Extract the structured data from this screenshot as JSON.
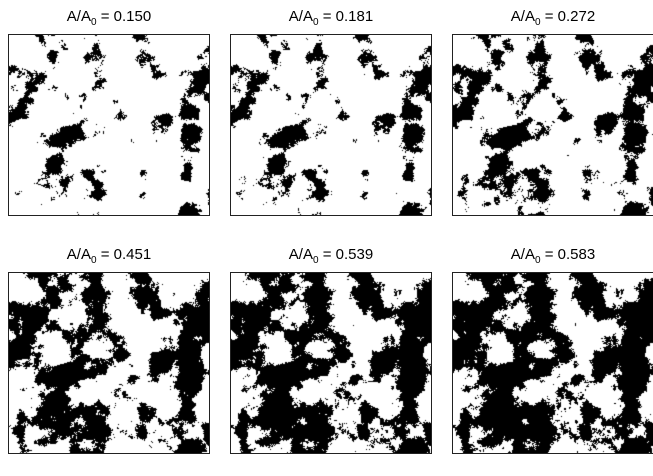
{
  "panels": [
    {
      "label": "A/A",
      "subscript": "0",
      "value": "= 0.150",
      "coverage": 0.15
    },
    {
      "label": "A/A",
      "subscript": "0",
      "value": "= 0.181",
      "coverage": 0.181
    },
    {
      "label": "A/A",
      "subscript": "0",
      "value": "= 0.272",
      "coverage": 0.272
    },
    {
      "label": "A/A",
      "subscript": "0",
      "value": "= 0.451",
      "coverage": 0.451
    },
    {
      "label": "A/A",
      "subscript": "0",
      "value": "= 0.539",
      "coverage": 0.539
    },
    {
      "label": "A/A",
      "subscript": "0",
      "value": "= 0.583",
      "coverage": 0.583
    }
  ],
  "colors": {
    "contact": "#000000",
    "background": "#ffffff",
    "frame": "#222222"
  }
}
